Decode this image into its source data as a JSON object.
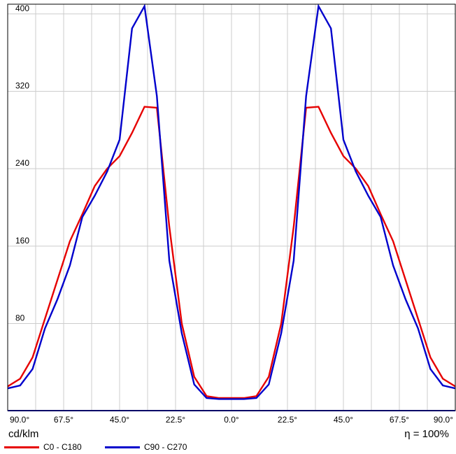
{
  "chart_data": {
    "type": "line",
    "x_tick_labels": [
      "90.0°",
      "67.5°",
      "45.0°",
      "22.5°",
      "0.0°",
      "22.5°",
      "45.0°",
      "67.5°",
      "90.0°"
    ],
    "y_ticks": [
      80,
      160,
      240,
      320,
      400
    ],
    "ylim": [
      -10,
      410
    ],
    "xlim": [
      -90,
      90
    ],
    "grid": true,
    "unit_label": "cd/klm",
    "efficiency_label": "η = 100%",
    "legend_position": "bottom-left",
    "x": [
      -90,
      -85,
      -80,
      -75,
      -70,
      -65,
      -60,
      -55,
      -50,
      -45,
      -40,
      -35,
      -30,
      -25,
      -20,
      -15,
      -10,
      -5,
      0,
      5,
      10,
      15,
      20,
      25,
      30,
      35,
      40,
      45,
      50,
      55,
      60,
      65,
      70,
      75,
      80,
      85,
      90
    ],
    "series": [
      {
        "name": "C0 - C180",
        "color": "#e60000",
        "values": [
          15,
          23,
          45,
          85,
          125,
          165,
          193,
          222,
          240,
          253,
          277,
          304,
          303,
          180,
          80,
          25,
          5,
          3,
          3,
          3,
          5,
          25,
          80,
          180,
          303,
          304,
          277,
          253,
          240,
          222,
          193,
          165,
          125,
          85,
          45,
          23,
          15
        ]
      },
      {
        "name": "C90 - C270",
        "color": "#0000cc",
        "values": [
          13,
          16,
          33,
          75,
          105,
          140,
          190,
          212,
          237,
          270,
          385,
          408,
          315,
          145,
          70,
          17,
          3,
          2,
          2,
          2,
          3,
          17,
          70,
          145,
          315,
          408,
          385,
          270,
          237,
          212,
          190,
          140,
          105,
          75,
          33,
          16,
          13
        ]
      }
    ]
  }
}
